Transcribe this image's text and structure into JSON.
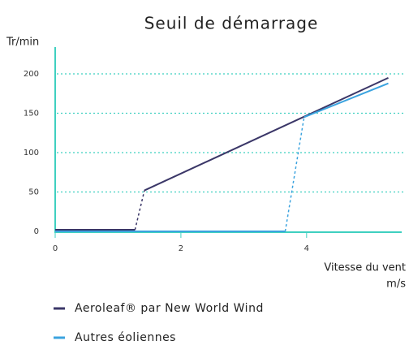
{
  "chart_data": {
    "type": "line",
    "title": "Seuil de démarrage",
    "y_label": "Tr/min",
    "x_label": "Vitesse du vent",
    "x_unit": "m/s",
    "xlim": [
      0,
      5.5
    ],
    "xticks": [
      0,
      2,
      4
    ],
    "ylim": [
      0,
      200
    ],
    "yticks": [
      0,
      50,
      100,
      150,
      200
    ],
    "grid": true,
    "series": [
      {
        "name": "Aeroleaf® par New World Wind",
        "color": "#3b3768",
        "x": [
          0,
          1.27,
          1.42,
          5.3
        ],
        "values": [
          2,
          2,
          52,
          195
        ],
        "dashed_segment": 1
      },
      {
        "name": "Autres éoliennes",
        "color": "#3ba3df",
        "x": [
          0,
          3.66,
          3.96,
          5.3
        ],
        "values": [
          0,
          0,
          145,
          188
        ],
        "dashed_segment": 1
      }
    ]
  }
}
